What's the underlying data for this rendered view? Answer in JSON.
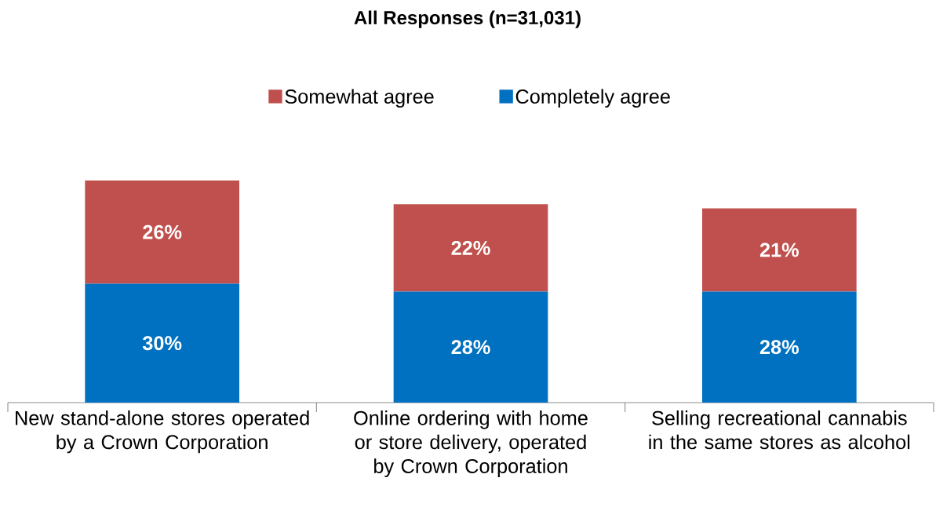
{
  "chart_data": {
    "type": "bar",
    "title": "All Responses (n=31,031)",
    "stacked": true,
    "legend": "top",
    "categories": [
      "New stand-alone stores operated by a Crown Corporation",
      "Online ordering with home or store delivery, operated by Crown Corporation",
      "Selling recreational cannabis in the same stores as alcohol"
    ],
    "series": [
      {
        "name": "Completely agree",
        "color": "#0070c0",
        "values": [
          30,
          28,
          28
        ],
        "value_labels": [
          "30%",
          "28%",
          "28%"
        ]
      },
      {
        "name": "Somewhat agree",
        "color": "#c0504d",
        "values": [
          26,
          22,
          21
        ],
        "value_labels": [
          "26%",
          "22%",
          "21%"
        ]
      }
    ]
  }
}
